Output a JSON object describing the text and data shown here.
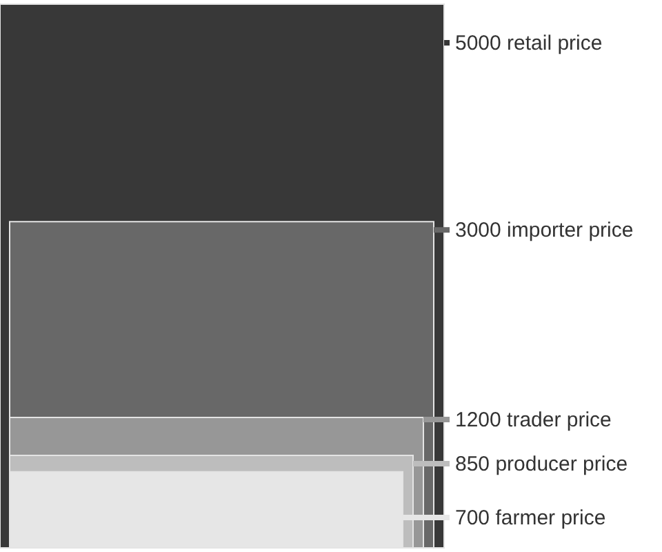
{
  "chart_data": {
    "type": "bar",
    "categories": [
      null
    ],
    "series": [
      {
        "name": "retail price",
        "color": "#383838",
        "values": [
          5000
        ]
      },
      {
        "name": "importer price",
        "color": "#686868",
        "values": [
          3000
        ]
      },
      {
        "name": "trader price",
        "color": "#979797",
        "values": [
          1200
        ]
      },
      {
        "name": "producer price",
        "color": "#bdbdbd",
        "values": [
          850
        ]
      },
      {
        "name": "farmer price",
        "color": "#e6e6e6",
        "values": [
          700
        ]
      }
    ],
    "data_labels": true
  }
}
